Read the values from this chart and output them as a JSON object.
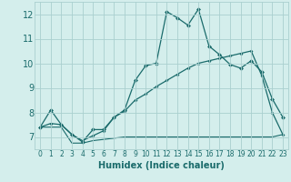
{
  "xlabel": "Humidex (Indice chaleur)",
  "bg_color": "#d4eeec",
  "line_color": "#1a6b6b",
  "grid_color": "#aacfcf",
  "xlim": [
    -0.5,
    23.5
  ],
  "ylim": [
    6.5,
    12.5
  ],
  "yticks": [
    7,
    8,
    9,
    10,
    11,
    12
  ],
  "xticks": [
    0,
    1,
    2,
    3,
    4,
    5,
    6,
    7,
    8,
    9,
    10,
    11,
    12,
    13,
    14,
    15,
    16,
    17,
    18,
    19,
    20,
    21,
    22,
    23
  ],
  "curve1_x": [
    0,
    1,
    2,
    3,
    4,
    5,
    6,
    7,
    8,
    9,
    10,
    11,
    12,
    13,
    14,
    15,
    16,
    17,
    18,
    19,
    20,
    21,
    22,
    23
  ],
  "curve1_y": [
    7.4,
    8.1,
    7.5,
    7.1,
    6.8,
    7.3,
    7.3,
    7.8,
    8.1,
    9.3,
    9.9,
    10.0,
    12.1,
    11.85,
    11.55,
    12.2,
    10.7,
    10.35,
    9.95,
    9.8,
    10.1,
    9.65,
    8.55,
    7.8
  ],
  "curve2_x": [
    0,
    1,
    2,
    3,
    4,
    5,
    6,
    7,
    8,
    9,
    10,
    11,
    12,
    13,
    14,
    15,
    16,
    17,
    18,
    19,
    20,
    21,
    22,
    23
  ],
  "curve2_y": [
    7.4,
    7.55,
    7.5,
    7.1,
    6.85,
    7.05,
    7.25,
    7.8,
    8.05,
    8.5,
    8.75,
    9.05,
    9.3,
    9.55,
    9.8,
    10.0,
    10.1,
    10.2,
    10.3,
    10.4,
    10.5,
    9.5,
    8.0,
    7.1
  ],
  "curve3_x": [
    0,
    1,
    2,
    3,
    4,
    5,
    6,
    7,
    8,
    9,
    10,
    11,
    12,
    13,
    14,
    15,
    16,
    17,
    18,
    19,
    20,
    21,
    22,
    23
  ],
  "curve3_y": [
    7.4,
    7.4,
    7.4,
    6.75,
    6.75,
    6.85,
    6.9,
    6.95,
    7.0,
    7.0,
    7.0,
    7.0,
    7.0,
    7.0,
    7.0,
    7.0,
    7.0,
    7.0,
    7.0,
    7.0,
    7.0,
    7.0,
    7.0,
    7.1
  ],
  "markersize": 2.5,
  "xlabel_fontsize": 7,
  "tick_fontsize_y": 7,
  "tick_fontsize_x": 5.5
}
